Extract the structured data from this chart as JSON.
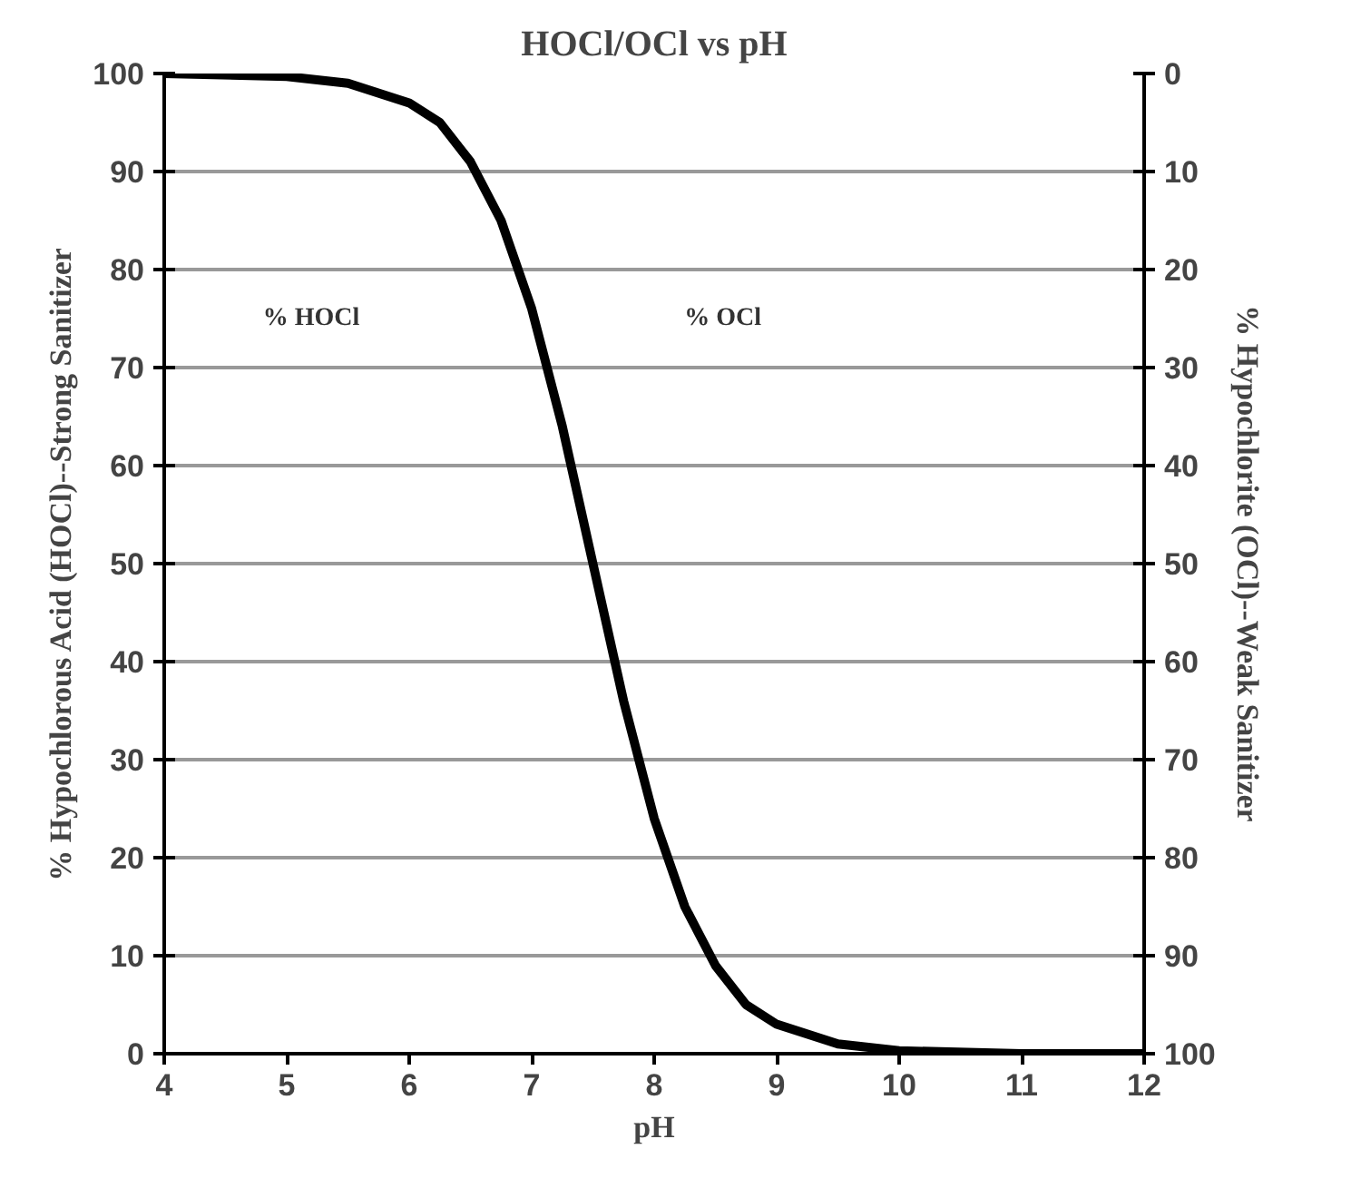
{
  "chart_data": {
    "type": "line",
    "title": "HOCl/OCl vs pH",
    "xlabel": "pH",
    "ylabel": "% Hypochlorous Acid (HOCl)--Strong Sanitizer",
    "y2label": "% Hypochlorite (OCl)--Weak Sanitizer",
    "x": [
      4,
      5,
      5.5,
      6,
      6.25,
      6.5,
      6.75,
      7,
      7.25,
      7.5,
      7.75,
      8,
      8.25,
      8.5,
      8.75,
      9,
      9.5,
      10,
      11,
      12
    ],
    "series": [
      {
        "color": "#000000",
        "values": [
          100,
          99.7,
          99,
          97,
          95,
          91,
          85,
          76,
          64,
          50,
          36,
          24,
          15,
          9,
          5,
          3,
          1,
          0.3,
          0,
          0
        ]
      }
    ],
    "annotations": [
      "% HOCl",
      "% OCl"
    ],
    "xlim": [
      4,
      12
    ],
    "xticks": [
      4,
      5,
      6,
      7,
      8,
      9,
      10,
      11,
      12
    ],
    "ylim": [
      0,
      100
    ],
    "yticks": [
      0,
      10,
      20,
      30,
      40,
      50,
      60,
      70,
      80,
      90,
      100
    ],
    "y2lim": [
      100,
      0
    ],
    "y2ticks": [
      0,
      10,
      20,
      30,
      40,
      50,
      60,
      70,
      80,
      90,
      100
    ],
    "grid": "y",
    "marker": "none",
    "line_style": "solid"
  }
}
